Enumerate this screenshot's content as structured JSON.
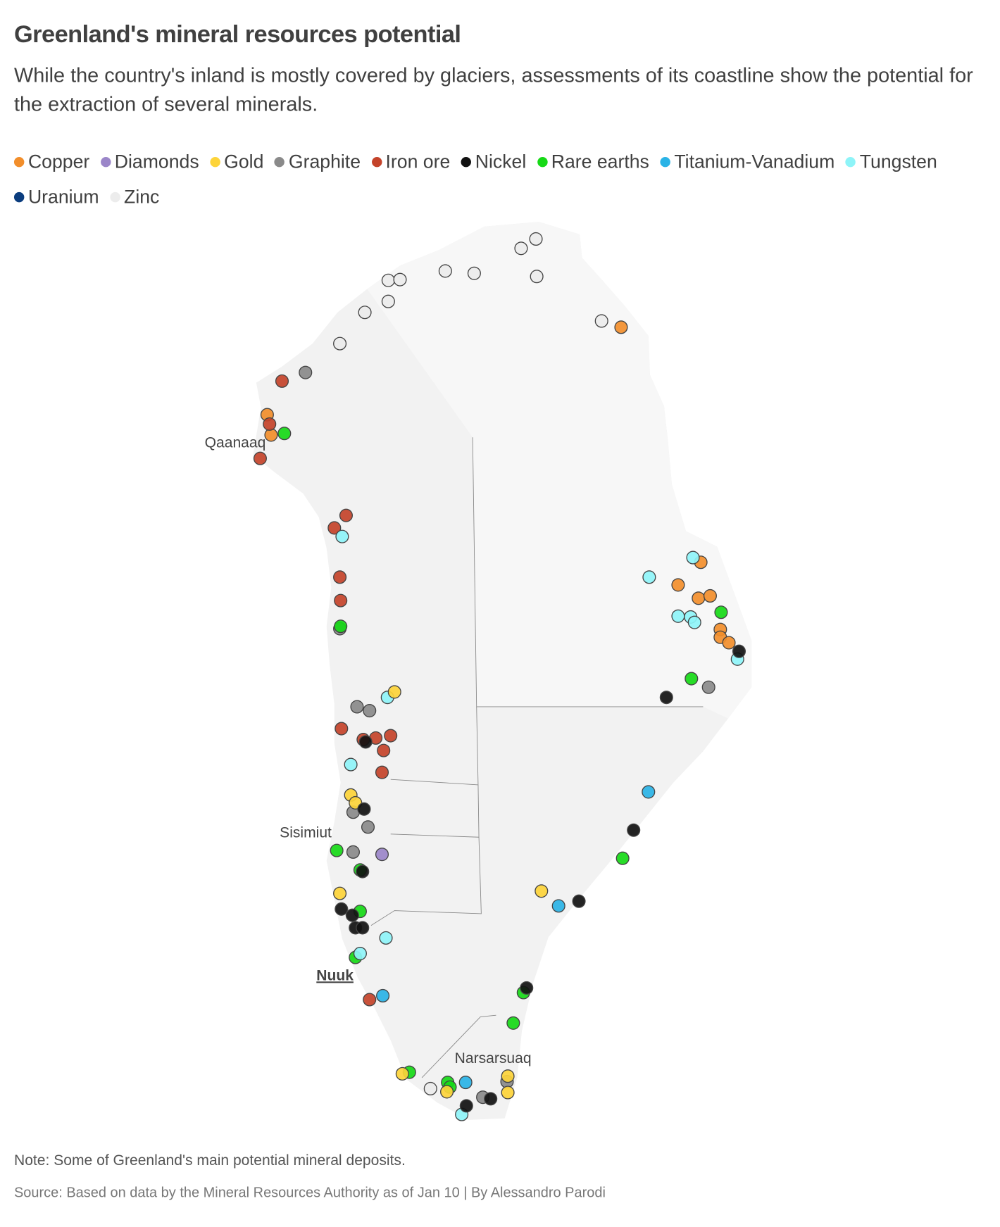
{
  "header": {
    "title": "Greenland's mineral resources potential",
    "subtitle": "While the country's inland is mostly covered by glaciers, assessments of its coastline show the potential for the extraction of several minerals."
  },
  "legend": [
    {
      "key": "copper",
      "label": "Copper",
      "color": "#f28e2b"
    },
    {
      "key": "diamonds",
      "label": "Diamonds",
      "color": "#9b86c9"
    },
    {
      "key": "gold",
      "label": "Gold",
      "color": "#fdd43a"
    },
    {
      "key": "graphite",
      "label": "Graphite",
      "color": "#8a8a8a"
    },
    {
      "key": "iron",
      "label": "Iron ore",
      "color": "#c4432a"
    },
    {
      "key": "nickel",
      "label": "Nickel",
      "color": "#111111"
    },
    {
      "key": "rare",
      "label": "Rare earths",
      "color": "#16d916"
    },
    {
      "key": "tiv",
      "label": "Titanium-Vanadium",
      "color": "#2ab3e6"
    },
    {
      "key": "tungsten",
      "label": "Tungsten",
      "color": "#8ef4f8"
    },
    {
      "key": "uranium",
      "label": "Uranium",
      "color": "#0b3d7e"
    },
    {
      "key": "zinc",
      "label": "Zinc",
      "color": "#ececec"
    }
  ],
  "places": {
    "qaanaaq": "Qaanaaq",
    "sisimiut": "Sisimiut",
    "nuuk": "Nuuk",
    "narsarsuaq": "Narsarsuaq"
  },
  "footer": {
    "note": "Note: Some of Greenland's main potential mineral deposits.",
    "source": "Source: Based on data by the Mineral Resources Authority as of Jan 10 | By Alessandro Parodi"
  }
}
